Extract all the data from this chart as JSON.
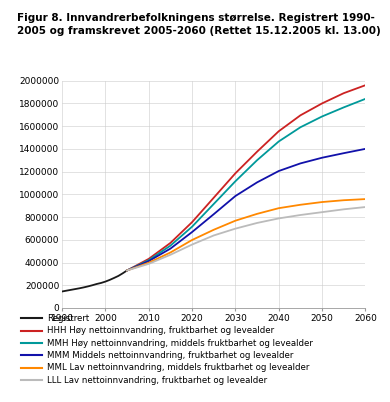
{
  "title_line1": "Figur 8. Innvandrerbefolkningens størrelse. Registrert 1990-",
  "title_line2": "2005 og framskrevet 2005-2060 (Rettet 15.12.2005 kl. 13.00)",
  "title_fontsize": 7.5,
  "xlim": [
    1990,
    2060
  ],
  "ylim": [
    0,
    2000000
  ],
  "yticks": [
    0,
    200000,
    400000,
    600000,
    800000,
    1000000,
    1200000,
    1400000,
    1600000,
    1800000,
    2000000
  ],
  "xticks": [
    1990,
    2000,
    2010,
    2020,
    2030,
    2040,
    2050,
    2060
  ],
  "registered_years": [
    1990,
    1991,
    1992,
    1993,
    1994,
    1995,
    1996,
    1997,
    1998,
    1999,
    2000,
    2001,
    2002,
    2003,
    2004,
    2005
  ],
  "registered_values": [
    145000,
    152000,
    159000,
    166000,
    173000,
    181000,
    190000,
    200000,
    211000,
    220000,
    232000,
    247000,
    264000,
    282000,
    305000,
    330000
  ],
  "HHH_years": [
    2005,
    2010,
    2015,
    2020,
    2025,
    2030,
    2035,
    2040,
    2045,
    2050,
    2055,
    2060
  ],
  "HHH_values": [
    330000,
    432000,
    572000,
    755000,
    970000,
    1185000,
    1375000,
    1555000,
    1695000,
    1800000,
    1890000,
    1960000
  ],
  "MMH_years": [
    2005,
    2010,
    2015,
    2020,
    2025,
    2030,
    2035,
    2040,
    2045,
    2050,
    2055,
    2060
  ],
  "MMH_values": [
    330000,
    420000,
    548000,
    715000,
    915000,
    1115000,
    1300000,
    1465000,
    1590000,
    1685000,
    1765000,
    1840000
  ],
  "MMM_years": [
    2005,
    2010,
    2015,
    2020,
    2025,
    2030,
    2035,
    2040,
    2045,
    2050,
    2055,
    2060
  ],
  "MMM_values": [
    330000,
    412000,
    522000,
    668000,
    825000,
    985000,
    1105000,
    1205000,
    1272000,
    1322000,
    1362000,
    1400000
  ],
  "MML_years": [
    2005,
    2010,
    2015,
    2020,
    2025,
    2030,
    2035,
    2040,
    2045,
    2050,
    2055,
    2060
  ],
  "MML_values": [
    330000,
    398000,
    488000,
    598000,
    688000,
    768000,
    828000,
    878000,
    908000,
    932000,
    948000,
    958000
  ],
  "LLL_years": [
    2005,
    2010,
    2015,
    2020,
    2025,
    2030,
    2035,
    2040,
    2045,
    2050,
    2055,
    2060
  ],
  "LLL_values": [
    330000,
    388000,
    468000,
    558000,
    638000,
    698000,
    748000,
    788000,
    818000,
    843000,
    868000,
    888000
  ],
  "colors": {
    "registered": "#1a1a1a",
    "HHH": "#cc2222",
    "MMH": "#00999a",
    "MMM": "#1111aa",
    "MML": "#ff8800",
    "LLL": "#bbbbbb"
  },
  "legend": [
    {
      "label": "Registrert",
      "color": "#1a1a1a"
    },
    {
      "label": "HHH Høy nettoinnvandring, fruktbarhet og levealder",
      "color": "#cc2222"
    },
    {
      "label": "MMH Høy nettoinnvandring, middels fruktbarhet og levealder",
      "color": "#00999a"
    },
    {
      "label": "MMM Middels nettoinnvandring, fruktbarhet og levealder",
      "color": "#1111aa"
    },
    {
      "label": "MML Lav nettoinnvandring, middels fruktbarhet og levealder",
      "color": "#ff8800"
    },
    {
      "label": "LLL Lav nettoinnvandring, fruktbarhet og levealder",
      "color": "#bbbbbb"
    }
  ]
}
